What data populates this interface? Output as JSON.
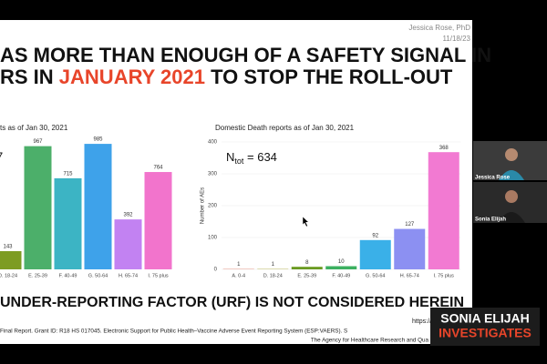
{
  "slide": {
    "author": "Jessica Rose, PhD",
    "date": "11/18/23",
    "title_line1": "AS MORE THAN ENOUGH OF A SAFETY SIGNAL IN",
    "title_line2_a": "RS IN ",
    "title_line2_red": "JANUARY 2021",
    "title_line2_b": " TO STOP THE ROLL-OUT",
    "bottom": "UNDER-REPORTING FACTOR (URF) IS NOT CONSIDERED HEREIN",
    "link": "https://va",
    "footnote1": "Final Report. Grant ID: R18 HS 017045. Electronic Support for Public Health–Vaccine Adverse Event Reporting System (ESP:VAERS). S",
    "footnote2": "The Agency for Healthcare Research and Qua"
  },
  "chart_data": [
    {
      "type": "bar",
      "title": "ts as of Jan 30, 2021",
      "annotation": "7",
      "categories": [
        "D. 18-24",
        "E. 25-39",
        "F. 40-49",
        "G. 50-64",
        "H. 65-74",
        "I. 75 plus"
      ],
      "values": [
        143,
        967,
        715,
        985,
        392,
        764
      ],
      "colors": [
        "#7d9c22",
        "#4caf6a",
        "#3cb4c4",
        "#3ea2ea",
        "#c282f2",
        "#f274cc"
      ],
      "ylim": [
        0,
        1000
      ]
    },
    {
      "type": "bar",
      "title": "Domestic Death reports as of Jan 30, 2021",
      "annotation": "N",
      "annotation_sub": "tot",
      "annotation_rest": " = 634",
      "ylabel": "Number of AEs",
      "categories": [
        "A. 0-4",
        "D. 18-24",
        "E. 25-39",
        "F. 40-49",
        "G. 50-64",
        "H. 65-74",
        "I. 75 plus"
      ],
      "values": [
        1,
        1,
        8,
        10,
        92,
        127,
        368
      ],
      "colors": [
        "#e0705a",
        "#a3a020",
        "#6a9a20",
        "#3cb060",
        "#3ab0e8",
        "#8c90f2",
        "#f27ad2"
      ],
      "ylim": [
        0,
        400
      ],
      "yticks": [
        0,
        100,
        200,
        300,
        400
      ]
    }
  ],
  "participants": [
    "Jessica Rose",
    "Sonia Elijah"
  ],
  "logo": {
    "line1": "SONIA ELIJAH",
    "line2": "INVESTIGATES"
  }
}
